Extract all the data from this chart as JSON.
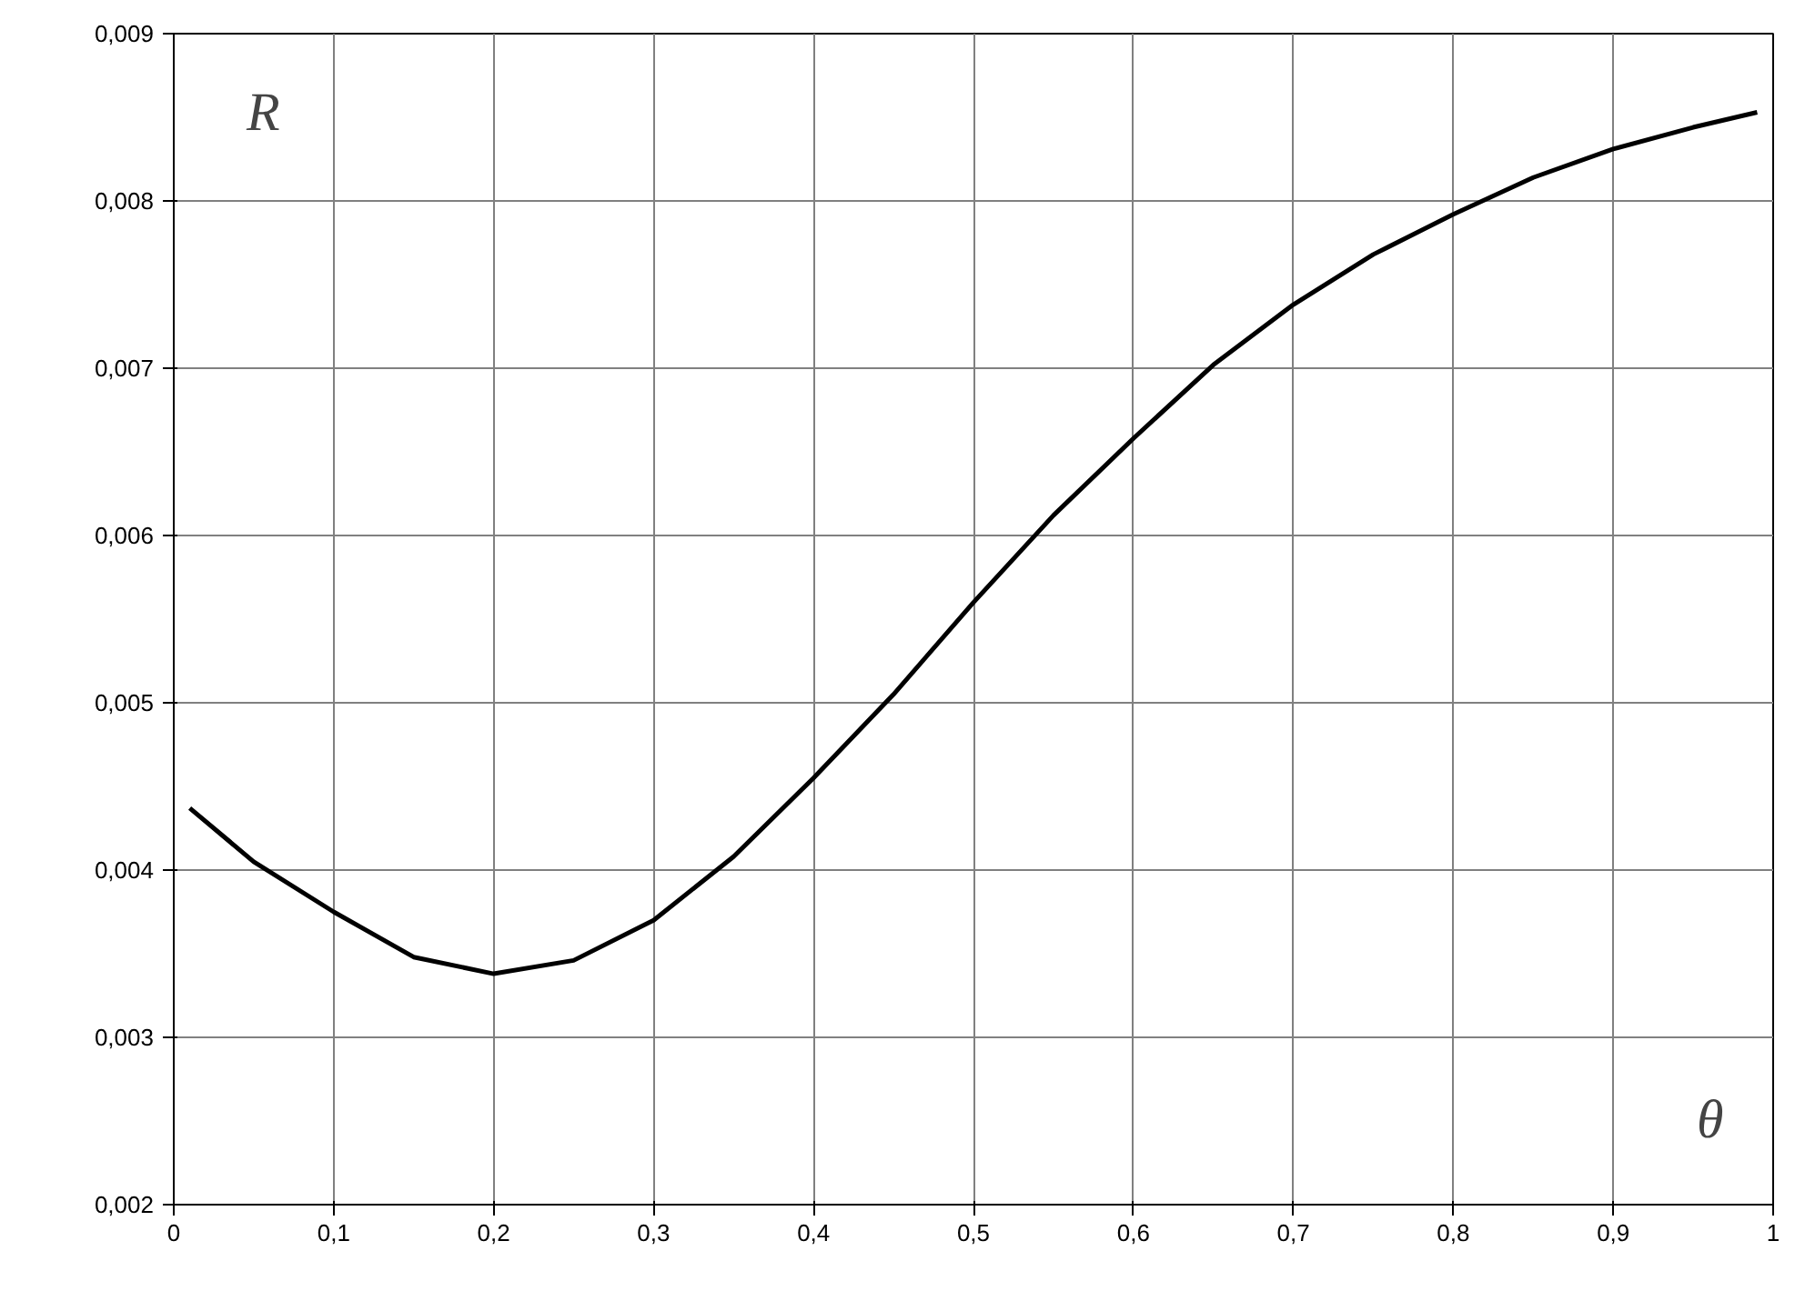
{
  "chart_data": {
    "type": "line",
    "xlabel": "θ",
    "ylabel": "R",
    "x": [
      0.01,
      0.05,
      0.1,
      0.15,
      0.2,
      0.25,
      0.3,
      0.35,
      0.4,
      0.45,
      0.5,
      0.55,
      0.6,
      0.65,
      0.7,
      0.75,
      0.8,
      0.85,
      0.9,
      0.95,
      0.99
    ],
    "series": [
      {
        "color": "#000000",
        "values": [
          0.00437,
          0.00405,
          0.00375,
          0.00348,
          0.00338,
          0.00346,
          0.0037,
          0.00408,
          0.00455,
          0.00505,
          0.0056,
          0.00612,
          0.00658,
          0.00702,
          0.00738,
          0.00768,
          0.00792,
          0.00814,
          0.00831,
          0.00844,
          0.00853
        ]
      }
    ],
    "xlim": [
      0,
      1
    ],
    "ylim": [
      0.002,
      0.009
    ],
    "xticks": [
      0,
      {
        "value": 0.1,
        "label": "0,1"
      },
      {
        "value": 0.2,
        "label": "0,2"
      },
      {
        "value": 0.3,
        "label": "0,3"
      },
      {
        "value": 0.4,
        "label": "0,4"
      },
      {
        "value": 0.5,
        "label": "0,5"
      },
      {
        "value": 0.6,
        "label": "0,6"
      },
      {
        "value": 0.7,
        "label": "0,7"
      },
      {
        "value": 0.8,
        "label": "0,8"
      },
      {
        "value": 0.9,
        "label": "0,9"
      },
      1
    ],
    "yticks": [
      {
        "value": 0.002,
        "label": "0,002"
      },
      {
        "value": 0.003,
        "label": "0,003"
      },
      {
        "value": 0.004,
        "label": "0,004"
      },
      {
        "value": 0.005,
        "label": "0,005"
      },
      {
        "value": 0.006,
        "label": "0,006"
      },
      {
        "value": 0.007,
        "label": "0,007"
      },
      {
        "value": 0.008,
        "label": "0,008"
      },
      {
        "value": 0.009,
        "label": "0,009"
      }
    ],
    "grid": true,
    "line_style": "solid",
    "marker": "none"
  }
}
